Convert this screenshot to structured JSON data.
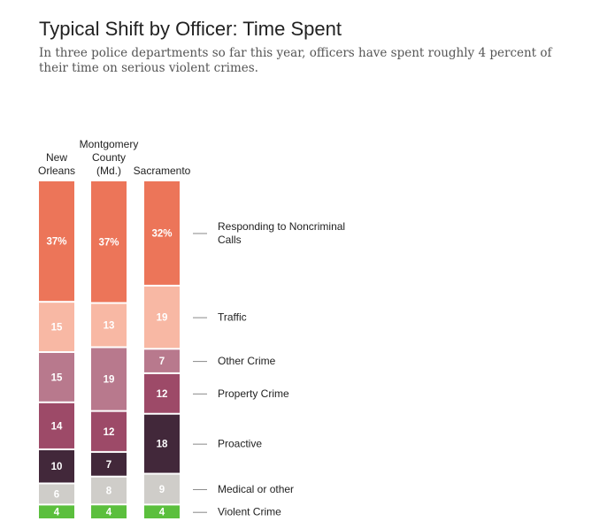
{
  "title": "Typical Shift by Officer: Time Spent",
  "subtitle": "In three police departments so far this year, officers have spent roughly 4 percent of their time on serious violent crimes.",
  "chart_data": {
    "type": "bar",
    "stacked": true,
    "unit": "percent",
    "categories": [
      {
        "name": "New Orleans",
        "lines": [
          "New",
          "Orleans"
        ]
      },
      {
        "name": "Montgomery County (Md.)",
        "lines": [
          "Montgomery",
          "County",
          "(Md.)"
        ]
      },
      {
        "name": "Sacramento",
        "lines": [
          "Sacramento"
        ]
      }
    ],
    "series": [
      {
        "name": "Responding to Noncriminal Calls",
        "label_lines": [
          "Responding to Noncriminal",
          "Calls"
        ],
        "color": "#EC7559",
        "text_color": "#ffffff",
        "values": [
          37,
          37,
          32
        ],
        "display": [
          "37%",
          "37%",
          "32%"
        ]
      },
      {
        "name": "Traffic",
        "label_lines": [
          "Traffic"
        ],
        "color": "#F8B8A4",
        "text_color": "#ffffff",
        "values": [
          15,
          13,
          19
        ],
        "display": [
          "15",
          "13",
          "19"
        ]
      },
      {
        "name": "Other Crime",
        "label_lines": [
          "Other Crime"
        ],
        "color": "#B8798D",
        "text_color": "#ffffff",
        "values": [
          15,
          19,
          7
        ],
        "display": [
          "15",
          "19",
          "7"
        ]
      },
      {
        "name": "Property Crime",
        "label_lines": [
          "Property Crime"
        ],
        "color": "#9D4A68",
        "text_color": "#ffffff",
        "values": [
          14,
          12,
          12
        ],
        "display": [
          "14",
          "12",
          "12"
        ]
      },
      {
        "name": "Proactive",
        "label_lines": [
          "Proactive"
        ],
        "color": "#42283A",
        "text_color": "#ffffff",
        "values": [
          10,
          7,
          18
        ],
        "display": [
          "10",
          "7",
          "18"
        ]
      },
      {
        "name": "Medical or other",
        "label_lines": [
          "Medical or other"
        ],
        "color": "#CFCDC9",
        "text_color": "#ffffff",
        "values": [
          6,
          8,
          9
        ],
        "display": [
          "6",
          "8",
          "9"
        ]
      },
      {
        "name": "Violent Crime",
        "label_lines": [
          "Violent Crime"
        ],
        "color": "#5BBF3D",
        "text_color": "#ffffff",
        "values": [
          4,
          4,
          4
        ],
        "display": [
          "4",
          "4",
          "4"
        ]
      }
    ],
    "legend": "right",
    "grid": false
  }
}
